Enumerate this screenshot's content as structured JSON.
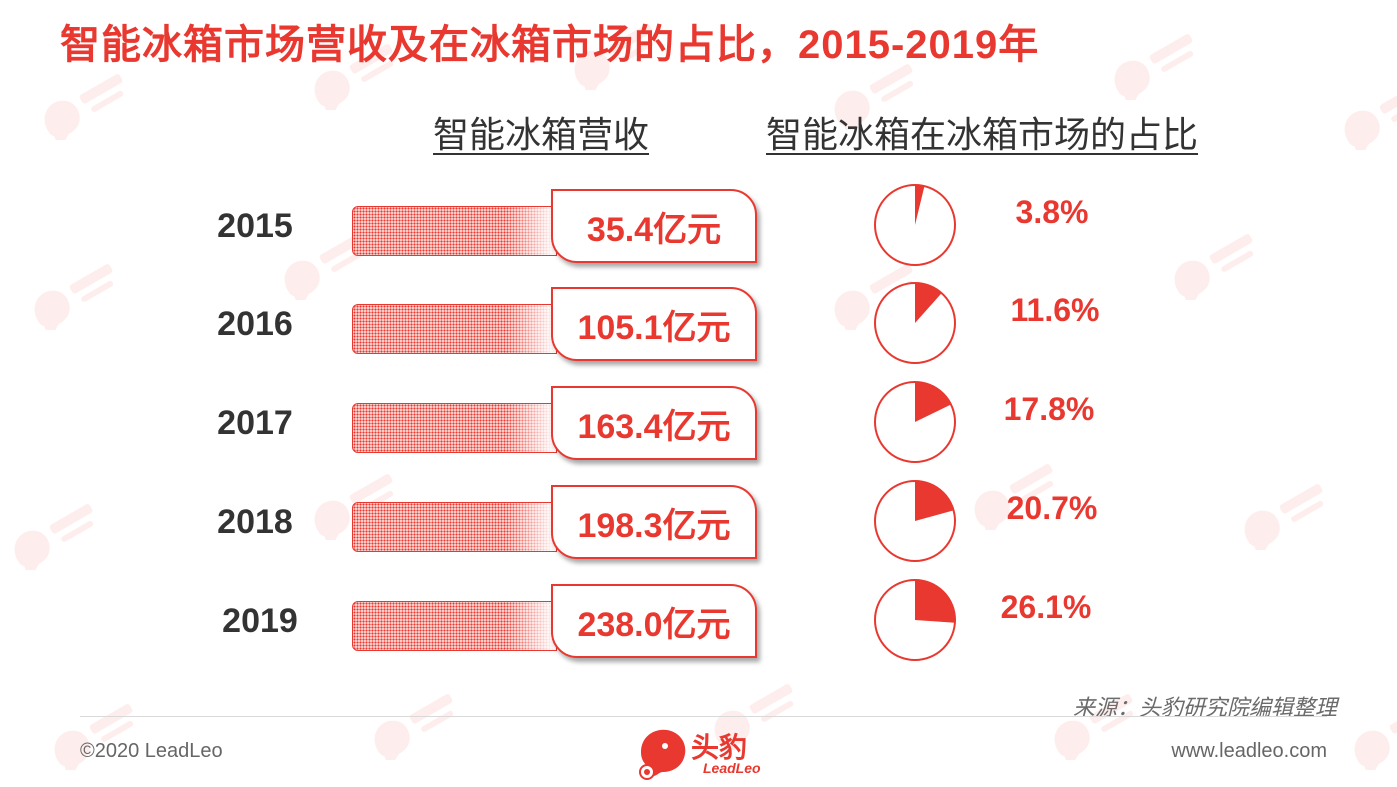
{
  "title": "智能冰箱市场营收及在冰箱市场的占比，2015-2019年",
  "headers": {
    "revenue": "智能冰箱营收",
    "share": "智能冰箱在冰箱市场的占比"
  },
  "colors": {
    "accent": "#e8382f",
    "text": "#333333"
  },
  "chart_data": {
    "type": "table",
    "categories": [
      "2015",
      "2016",
      "2017",
      "2018",
      "2019"
    ],
    "series": [
      {
        "name": "智能冰箱营收",
        "unit": "亿元",
        "values": [
          35.4,
          105.1,
          163.4,
          198.3,
          238.0
        ],
        "labels": [
          "35.4亿元",
          "105.1亿元",
          "163.4亿元",
          "198.3亿元",
          "238.0亿元"
        ]
      },
      {
        "name": "智能冰箱在冰箱市场的占比",
        "unit": "%",
        "values": [
          3.8,
          11.6,
          17.8,
          20.7,
          26.1
        ],
        "labels": [
          "3.8%",
          "11.6%",
          "17.8%",
          "20.7%",
          "26.1%"
        ]
      }
    ]
  },
  "footer": {
    "source": "来源：头豹研究院编辑整理",
    "copyright": "©2020 LeadLeo",
    "website": "www.leadleo.com",
    "logo_cn": "头豹",
    "logo_en": "LeadLeo"
  },
  "watermark": {
    "text_cn": "头豹",
    "text_en": "LeadLeo",
    "icon": "leopard-head-icon"
  }
}
